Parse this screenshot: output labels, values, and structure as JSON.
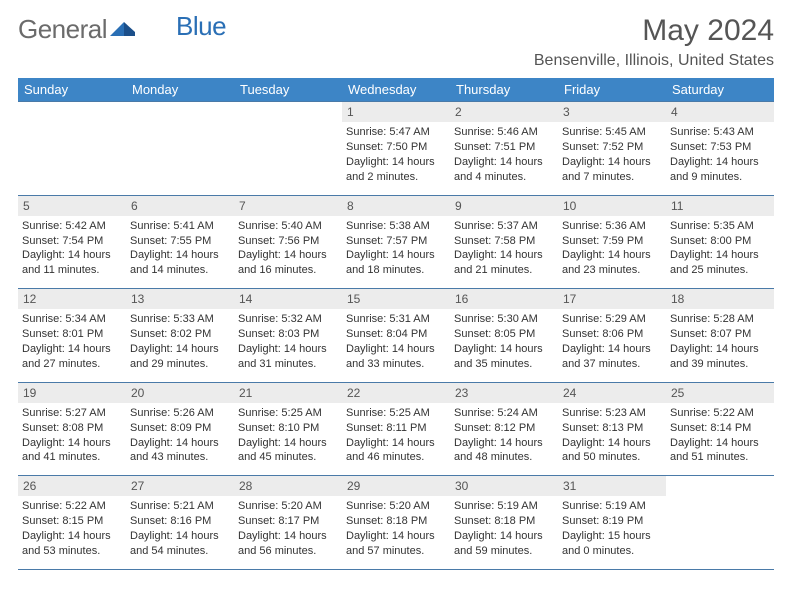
{
  "logo": {
    "part1": "General",
    "part2": "Blue"
  },
  "title": "May 2024",
  "location": "Bensenville, Illinois, United States",
  "colors": {
    "header_bg": "#3d85c6",
    "header_text": "#ffffff",
    "daynum_bg": "#ececec",
    "border": "#4a7aa8",
    "logo_gray": "#6b6b6b",
    "logo_blue": "#2a6fb5",
    "text": "#333333"
  },
  "weekdays": [
    "Sunday",
    "Monday",
    "Tuesday",
    "Wednesday",
    "Thursday",
    "Friday",
    "Saturday"
  ],
  "weeks": [
    [
      null,
      null,
      null,
      {
        "d": "1",
        "sr": "5:47 AM",
        "ss": "7:50 PM",
        "dl": "14 hours and 2 minutes."
      },
      {
        "d": "2",
        "sr": "5:46 AM",
        "ss": "7:51 PM",
        "dl": "14 hours and 4 minutes."
      },
      {
        "d": "3",
        "sr": "5:45 AM",
        "ss": "7:52 PM",
        "dl": "14 hours and 7 minutes."
      },
      {
        "d": "4",
        "sr": "5:43 AM",
        "ss": "7:53 PM",
        "dl": "14 hours and 9 minutes."
      }
    ],
    [
      {
        "d": "5",
        "sr": "5:42 AM",
        "ss": "7:54 PM",
        "dl": "14 hours and 11 minutes."
      },
      {
        "d": "6",
        "sr": "5:41 AM",
        "ss": "7:55 PM",
        "dl": "14 hours and 14 minutes."
      },
      {
        "d": "7",
        "sr": "5:40 AM",
        "ss": "7:56 PM",
        "dl": "14 hours and 16 minutes."
      },
      {
        "d": "8",
        "sr": "5:38 AM",
        "ss": "7:57 PM",
        "dl": "14 hours and 18 minutes."
      },
      {
        "d": "9",
        "sr": "5:37 AM",
        "ss": "7:58 PM",
        "dl": "14 hours and 21 minutes."
      },
      {
        "d": "10",
        "sr": "5:36 AM",
        "ss": "7:59 PM",
        "dl": "14 hours and 23 minutes."
      },
      {
        "d": "11",
        "sr": "5:35 AM",
        "ss": "8:00 PM",
        "dl": "14 hours and 25 minutes."
      }
    ],
    [
      {
        "d": "12",
        "sr": "5:34 AM",
        "ss": "8:01 PM",
        "dl": "14 hours and 27 minutes."
      },
      {
        "d": "13",
        "sr": "5:33 AM",
        "ss": "8:02 PM",
        "dl": "14 hours and 29 minutes."
      },
      {
        "d": "14",
        "sr": "5:32 AM",
        "ss": "8:03 PM",
        "dl": "14 hours and 31 minutes."
      },
      {
        "d": "15",
        "sr": "5:31 AM",
        "ss": "8:04 PM",
        "dl": "14 hours and 33 minutes."
      },
      {
        "d": "16",
        "sr": "5:30 AM",
        "ss": "8:05 PM",
        "dl": "14 hours and 35 minutes."
      },
      {
        "d": "17",
        "sr": "5:29 AM",
        "ss": "8:06 PM",
        "dl": "14 hours and 37 minutes."
      },
      {
        "d": "18",
        "sr": "5:28 AM",
        "ss": "8:07 PM",
        "dl": "14 hours and 39 minutes."
      }
    ],
    [
      {
        "d": "19",
        "sr": "5:27 AM",
        "ss": "8:08 PM",
        "dl": "14 hours and 41 minutes."
      },
      {
        "d": "20",
        "sr": "5:26 AM",
        "ss": "8:09 PM",
        "dl": "14 hours and 43 minutes."
      },
      {
        "d": "21",
        "sr": "5:25 AM",
        "ss": "8:10 PM",
        "dl": "14 hours and 45 minutes."
      },
      {
        "d": "22",
        "sr": "5:25 AM",
        "ss": "8:11 PM",
        "dl": "14 hours and 46 minutes."
      },
      {
        "d": "23",
        "sr": "5:24 AM",
        "ss": "8:12 PM",
        "dl": "14 hours and 48 minutes."
      },
      {
        "d": "24",
        "sr": "5:23 AM",
        "ss": "8:13 PM",
        "dl": "14 hours and 50 minutes."
      },
      {
        "d": "25",
        "sr": "5:22 AM",
        "ss": "8:14 PM",
        "dl": "14 hours and 51 minutes."
      }
    ],
    [
      {
        "d": "26",
        "sr": "5:22 AM",
        "ss": "8:15 PM",
        "dl": "14 hours and 53 minutes."
      },
      {
        "d": "27",
        "sr": "5:21 AM",
        "ss": "8:16 PM",
        "dl": "14 hours and 54 minutes."
      },
      {
        "d": "28",
        "sr": "5:20 AM",
        "ss": "8:17 PM",
        "dl": "14 hours and 56 minutes."
      },
      {
        "d": "29",
        "sr": "5:20 AM",
        "ss": "8:18 PM",
        "dl": "14 hours and 57 minutes."
      },
      {
        "d": "30",
        "sr": "5:19 AM",
        "ss": "8:18 PM",
        "dl": "14 hours and 59 minutes."
      },
      {
        "d": "31",
        "sr": "5:19 AM",
        "ss": "8:19 PM",
        "dl": "15 hours and 0 minutes."
      },
      null
    ]
  ],
  "labels": {
    "sunrise": "Sunrise:",
    "sunset": "Sunset:",
    "daylight": "Daylight:"
  }
}
